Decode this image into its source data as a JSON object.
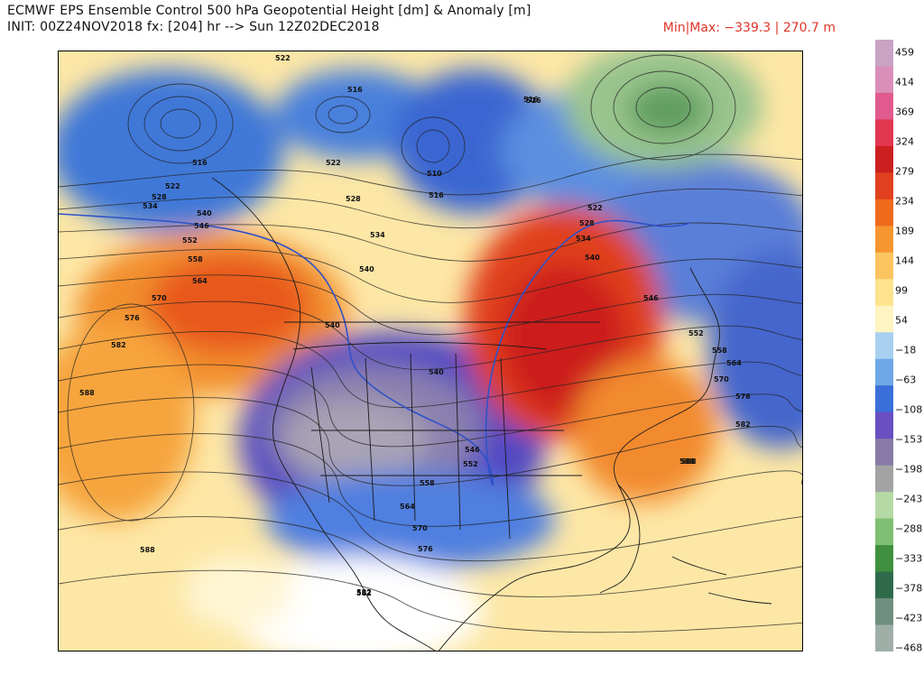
{
  "header": {
    "title_line1": "ECMWF EPS Ensemble Control 500 hPa Geopotential Height [dm] & Anomaly [m]",
    "title_line2": "INIT: 00Z24NOV2018 fx: [204] hr --> Sun 12Z02DEC2018",
    "minmax": "Min|Max: −339.3 | 270.7 m"
  },
  "colorbar": {
    "labels": [
      "459",
      "414",
      "369",
      "324",
      "279",
      "234",
      "189",
      "144",
      "99",
      "54",
      "−18",
      "−63",
      "−108",
      "−153",
      "−198",
      "−243",
      "−288",
      "−333",
      "−378",
      "−423",
      "−468"
    ],
    "colors": [
      "#c9a3c4",
      "#d98fb8",
      "#e05a8e",
      "#e0364f",
      "#cc1f1f",
      "#e0401d",
      "#f06a1e",
      "#f7962f",
      "#fbc45f",
      "#fde38f",
      "#fff4c2",
      "#a8d0f0",
      "#6fa7e6",
      "#3a6fd8",
      "#6a4fc2",
      "#8a7aa8",
      "#a3a3a3",
      "#b5d9a5",
      "#7fbf73",
      "#3f8f3f",
      "#2f6b4a",
      "#6f9080",
      "#a0aea8"
    ]
  },
  "map": {
    "contour_labels": [
      "522",
      "516",
      "516",
      "516",
      "522",
      "528",
      "534",
      "516",
      "510",
      "522",
      "528",
      "534",
      "540",
      "546",
      "552",
      "558",
      "564",
      "570",
      "576",
      "582",
      "588",
      "588",
      "516",
      "522",
      "528",
      "534",
      "540",
      "546",
      "540",
      "540",
      "546",
      "552",
      "558",
      "564",
      "570",
      "576",
      "582",
      "588",
      "540",
      "552",
      "558",
      "564",
      "570",
      "576",
      "582",
      "588",
      "582"
    ]
  }
}
